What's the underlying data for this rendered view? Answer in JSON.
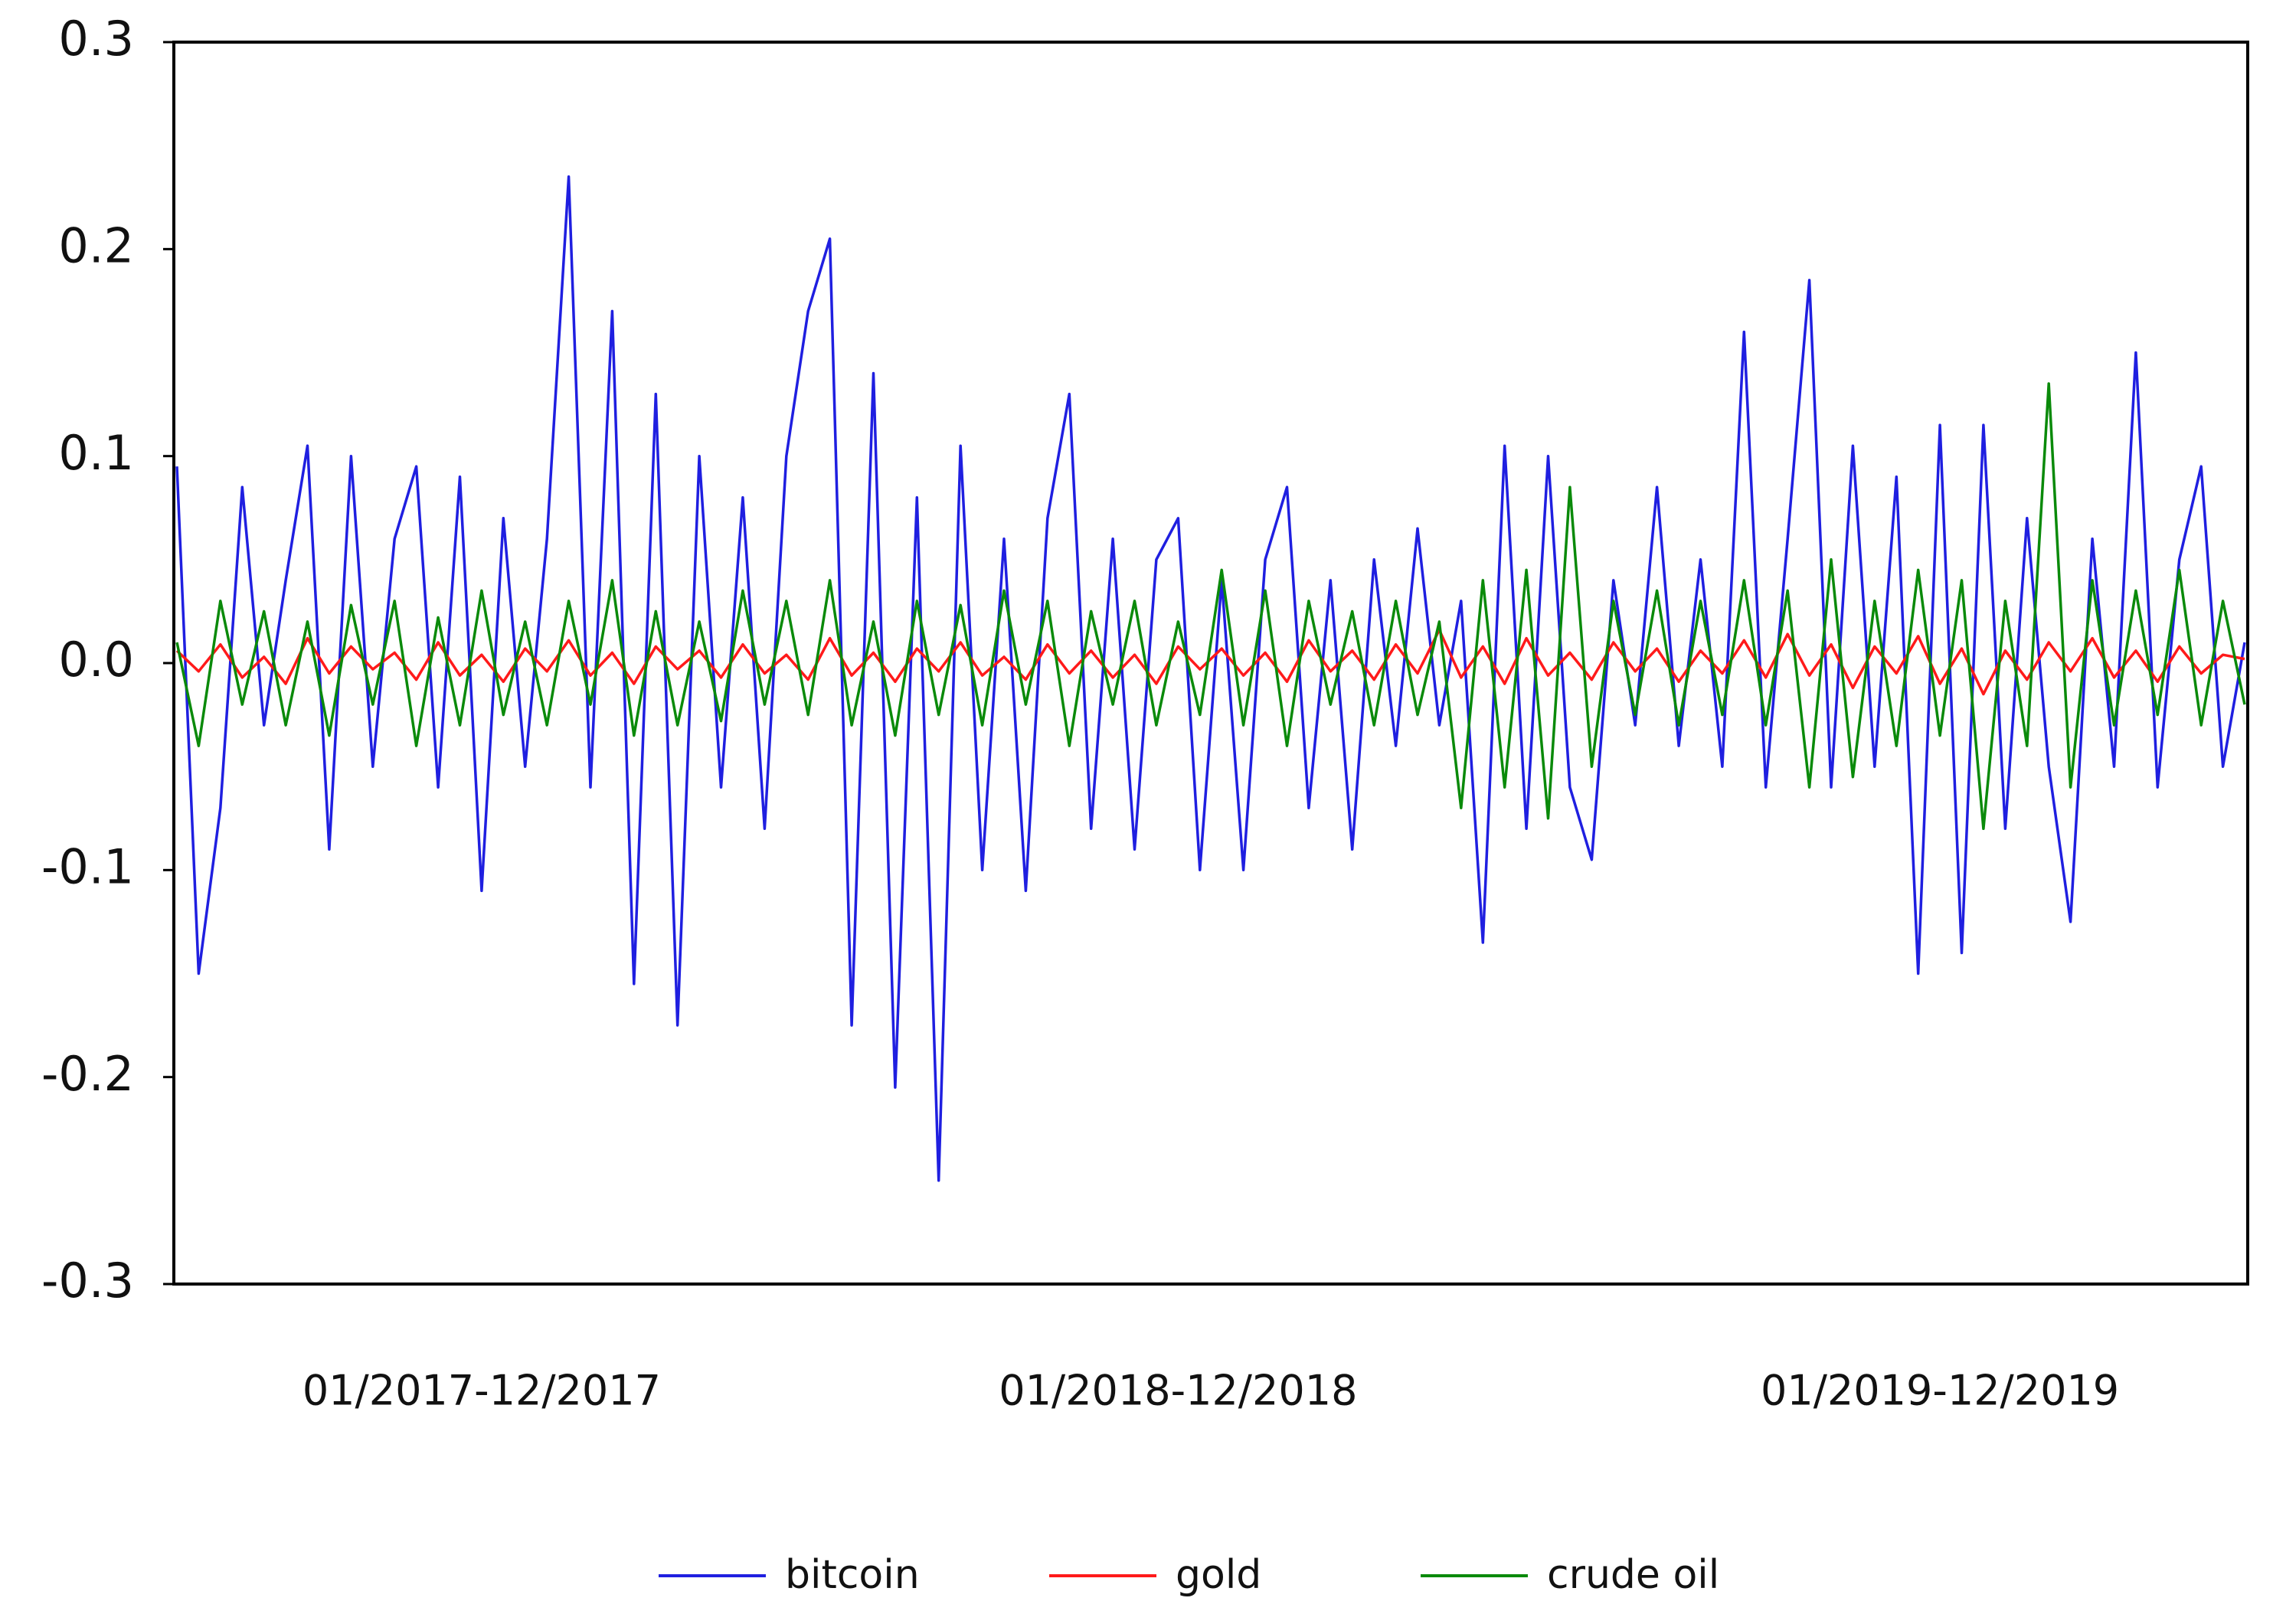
{
  "chart_data": {
    "type": "line",
    "categories": [
      null,
      null,
      null,
      null,
      null,
      null,
      null,
      null,
      null,
      null,
      null,
      null,
      null,
      null,
      "01/2017-12/2017",
      null,
      null,
      null,
      null,
      null,
      null,
      null,
      null,
      null,
      null,
      null,
      null,
      null,
      null,
      null,
      null,
      null,
      null,
      null,
      null,
      null,
      null,
      null,
      null,
      null,
      null,
      null,
      null,
      null,
      null,
      null,
      "01/2018-12/2018",
      null,
      null,
      null,
      null,
      null,
      null,
      null,
      null,
      null,
      null,
      null,
      null,
      null,
      null,
      null,
      null,
      null,
      null,
      null,
      null,
      null,
      null,
      null,
      null,
      null,
      null,
      null,
      null,
      null,
      null,
      null,
      null,
      null,
      null,
      "01/2019-12/2019",
      null,
      null,
      null,
      null,
      null,
      null,
      null,
      null,
      null,
      null,
      null,
      null,
      null,
      null
    ],
    "series": [
      {
        "name": "bitcoin",
        "color": "#1f1fe0",
        "values": [
          0.095,
          -0.15,
          -0.07,
          0.085,
          -0.03,
          0.04,
          0.105,
          -0.09,
          0.1,
          -0.05,
          0.06,
          0.095,
          -0.06,
          0.09,
          -0.11,
          0.07,
          -0.05,
          0.06,
          0.235,
          -0.06,
          0.17,
          -0.155,
          0.13,
          -0.175,
          0.1,
          -0.06,
          0.08,
          -0.08,
          0.1,
          0.17,
          0.205,
          -0.175,
          0.14,
          -0.205,
          0.08,
          -0.25,
          0.105,
          -0.1,
          0.06,
          -0.11,
          0.07,
          0.13,
          -0.08,
          0.06,
          -0.09,
          0.05,
          0.07,
          -0.1,
          0.04,
          -0.1,
          0.05,
          0.085,
          -0.07,
          0.04,
          -0.09,
          0.05,
          -0.04,
          0.065,
          -0.03,
          0.03,
          -0.135,
          0.105,
          -0.08,
          0.1,
          -0.06,
          -0.095,
          0.04,
          -0.03,
          0.085,
          -0.04,
          0.05,
          -0.05,
          0.16,
          -0.06,
          0.06,
          0.185,
          -0.06,
          0.105,
          -0.05,
          0.09,
          -0.15,
          0.115,
          -0.14,
          0.115,
          -0.08,
          0.07,
          -0.05,
          -0.125,
          0.06,
          -0.05,
          0.15,
          -0.06,
          0.05,
          0.095,
          -0.05,
          0.01
        ]
      },
      {
        "name": "gold",
        "color": "#ff1a1a",
        "values": [
          0.006,
          -0.004,
          0.009,
          -0.007,
          0.003,
          -0.01,
          0.012,
          -0.005,
          0.008,
          -0.003,
          0.005,
          -0.008,
          0.01,
          -0.006,
          0.004,
          -0.009,
          0.007,
          -0.004,
          0.011,
          -0.006,
          0.005,
          -0.01,
          0.008,
          -0.003,
          0.006,
          -0.007,
          0.009,
          -0.005,
          0.004,
          -0.008,
          0.012,
          -0.006,
          0.005,
          -0.009,
          0.007,
          -0.004,
          0.01,
          -0.006,
          0.003,
          -0.008,
          0.009,
          -0.005,
          0.006,
          -0.007,
          0.004,
          -0.01,
          0.008,
          -0.003,
          0.007,
          -0.006,
          0.005,
          -0.009,
          0.011,
          -0.004,
          0.006,
          -0.008,
          0.009,
          -0.005,
          0.016,
          -0.007,
          0.008,
          -0.01,
          0.012,
          -0.006,
          0.005,
          -0.008,
          0.01,
          -0.004,
          0.007,
          -0.009,
          0.006,
          -0.005,
          0.011,
          -0.007,
          0.014,
          -0.006,
          0.009,
          -0.012,
          0.008,
          -0.005,
          0.013,
          -0.01,
          0.007,
          -0.015,
          0.006,
          -0.008,
          0.01,
          -0.004,
          0.012,
          -0.007,
          0.006,
          -0.009,
          0.008,
          -0.005,
          0.004,
          0.002
        ]
      },
      {
        "name": "crude oil",
        "color": "#0a8a0a",
        "values": [
          0.01,
          -0.04,
          0.03,
          -0.02,
          0.025,
          -0.03,
          0.02,
          -0.035,
          0.028,
          -0.02,
          0.03,
          -0.04,
          0.022,
          -0.03,
          0.035,
          -0.025,
          0.02,
          -0.03,
          0.03,
          -0.02,
          0.04,
          -0.035,
          0.025,
          -0.03,
          0.02,
          -0.028,
          0.035,
          -0.02,
          0.03,
          -0.025,
          0.04,
          -0.03,
          0.02,
          -0.035,
          0.03,
          -0.025,
          0.028,
          -0.03,
          0.035,
          -0.02,
          0.03,
          -0.04,
          0.025,
          -0.02,
          0.03,
          -0.03,
          0.02,
          -0.025,
          0.045,
          -0.03,
          0.035,
          -0.04,
          0.03,
          -0.02,
          0.025,
          -0.03,
          0.03,
          -0.025,
          0.02,
          -0.07,
          0.04,
          -0.06,
          0.045,
          -0.075,
          0.085,
          -0.05,
          0.03,
          -0.025,
          0.035,
          -0.03,
          0.03,
          -0.025,
          0.04,
          -0.03,
          0.035,
          -0.06,
          0.05,
          -0.055,
          0.03,
          -0.04,
          0.045,
          -0.035,
          0.04,
          -0.08,
          0.03,
          -0.04,
          0.135,
          -0.06,
          0.04,
          -0.03,
          0.035,
          -0.025,
          0.045,
          -0.03,
          0.03,
          -0.02
        ]
      }
    ],
    "ylim": [
      -0.3,
      0.3
    ],
    "yticks": [
      -0.3,
      -0.2,
      -0.1,
      {
        "value": 0,
        "label": "0.0"
      },
      0.1,
      0.2,
      0.3
    ],
    "grid": false
  }
}
